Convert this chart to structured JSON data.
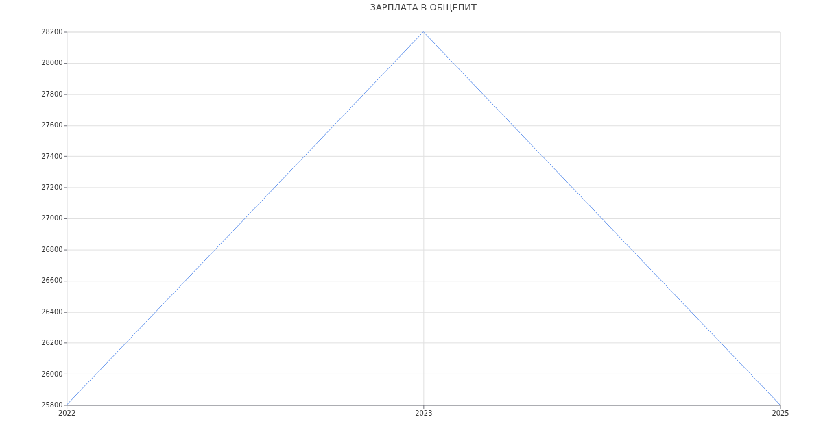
{
  "chart_data": {
    "type": "line",
    "title": "ЗАРПЛАТА В  ОБЩЕПИТ",
    "categories": [
      "2022",
      "2023",
      "2025"
    ],
    "series": [
      {
        "color": "#6495ed",
        "values": [
          25800,
          28200,
          25800
        ]
      }
    ],
    "ylim": [
      25800,
      28200
    ],
    "yticks": [
      25800,
      26000,
      26200,
      26400,
      26600,
      26800,
      27000,
      27200,
      27400,
      27600,
      27800,
      28000,
      28200
    ],
    "grid": true,
    "marker": "none",
    "line_style": "solid"
  }
}
